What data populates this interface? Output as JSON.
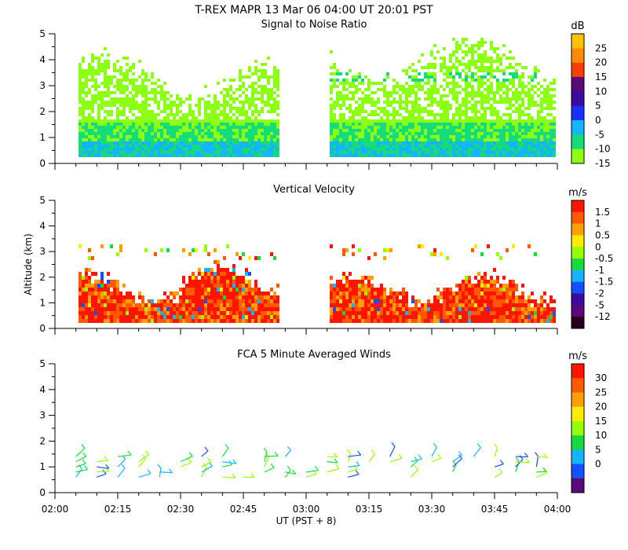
{
  "header": {
    "title": "T-REX   MAPR 13 Mar 06   04:00 UT   20:01   PST"
  },
  "chart_data": [
    {
      "id": "snr",
      "type": "heatmap",
      "title": "Signal to Noise Ratio",
      "ylabel": "",
      "ylim": [
        0,
        5
      ],
      "yticks": [
        "0",
        "1",
        "2",
        "3",
        "4",
        "5"
      ],
      "xlim": [
        0,
        120
      ],
      "colorbar": {
        "unit": "dB",
        "labels": [
          "25",
          "20",
          "15",
          "10",
          "5",
          "0",
          "-5",
          "-10",
          "-15"
        ],
        "colors": [
          "#ffc200",
          "#ff8c00",
          "#ff3c00",
          "#5a0a78",
          "#3c0aa0",
          "#1432ff",
          "#14b4ff",
          "#14dc78",
          "#8cff14"
        ]
      },
      "gaps": [
        [
          0,
          5
        ],
        [
          60,
          65
        ]
      ]
    },
    {
      "id": "velocity",
      "type": "heatmap",
      "title": "Vertical Velocity",
      "ylabel": "Altitude  (km)",
      "ylim": [
        0,
        5
      ],
      "yticks": [
        "0",
        "1",
        "2",
        "3",
        "4",
        "5"
      ],
      "xlim": [
        0,
        120
      ],
      "colorbar": {
        "unit": "m/s",
        "labels": [
          "1.5",
          "1",
          "0.5",
          "0",
          "-0.5",
          "-1",
          "-1.5",
          "-2",
          "-5",
          "-12"
        ],
        "colors": [
          "#ff1400",
          "#ff5a00",
          "#ffa000",
          "#ffeb00",
          "#96ff00",
          "#14dc3c",
          "#14b4ff",
          "#1450ff",
          "#3c0aa0",
          "#5a0a78",
          "#28001e"
        ]
      }
    },
    {
      "id": "winds",
      "type": "scatter",
      "title": "FCA 5 Minute Averaged Winds",
      "ylabel": "",
      "ylim": [
        0,
        5
      ],
      "yticks": [
        "0",
        "1",
        "2",
        "3",
        "4",
        "5"
      ],
      "xlim": [
        0,
        120
      ],
      "colorbar": {
        "unit": "m/s",
        "labels": [
          "30",
          "25",
          "20",
          "15",
          "10",
          "5",
          "0"
        ],
        "colors": [
          "#ff1400",
          "#ff5a00",
          "#ffa000",
          "#ffeb00",
          "#96ff00",
          "#14dc3c",
          "#14b4ff",
          "#1450ff",
          "#5a0a78"
        ]
      },
      "times": [
        5,
        10,
        15,
        20,
        25,
        30,
        35,
        40,
        45,
        50,
        55,
        60,
        65,
        70,
        75,
        80,
        85,
        90,
        95,
        100,
        105,
        110,
        115
      ],
      "altitudes": [
        0.6,
        0.8,
        1.0,
        1.2,
        1.4
      ],
      "speed_range": [
        5,
        15
      ]
    }
  ],
  "x_axis": {
    "ticks": [
      "02:00",
      "02:15",
      "02:30",
      "02:45",
      "03:00",
      "03:15",
      "03:30",
      "03:45",
      "04:00"
    ],
    "label": "UT   (PST + 8)"
  }
}
